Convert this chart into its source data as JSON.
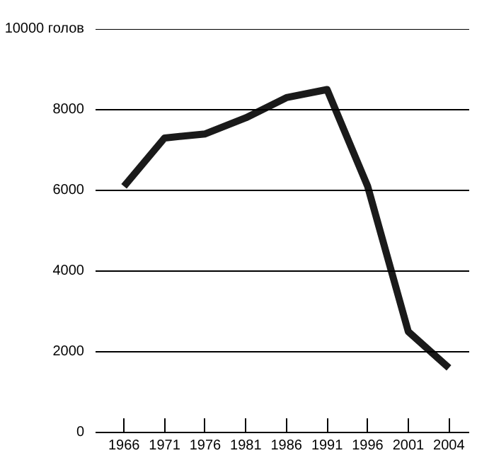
{
  "chart_data": {
    "type": "line",
    "categories": [
      "1966",
      "1971",
      "1976",
      "1981",
      "1986",
      "1991",
      "1996",
      "2001",
      "2004"
    ],
    "series": [
      {
        "color": "#1a1a1a",
        "values": [
          6100,
          7300,
          7400,
          7800,
          8300,
          8500,
          6100,
          2500,
          1600
        ]
      }
    ],
    "ylim": [
      0,
      10000
    ],
    "yticks": [
      0,
      2000,
      4000,
      6000,
      8000,
      {
        "value": 10000,
        "label": "10000 голов"
      }
    ],
    "grid": "y",
    "marker": "none",
    "line_style": "solid"
  }
}
